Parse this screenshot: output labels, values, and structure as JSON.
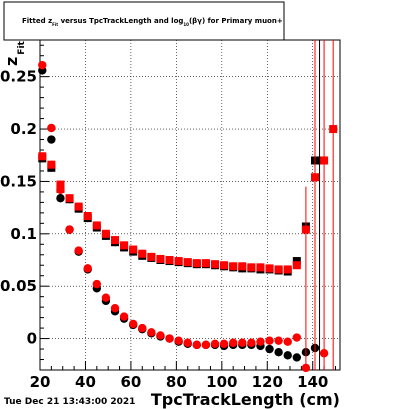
{
  "chart_data": {
    "type": "scatter",
    "title": {
      "prefix": "Fitted  z",
      "sub_fit": "Fit",
      "middle": "  versus  TpcTrackLength and log",
      "sub_10": "10",
      "suffix": "(βγ) for Primary muon+"
    },
    "xlabel": "TpcTrackLength (cm)",
    "ylabel_main": "z",
    "ylabel_sub": "Fit",
    "timestamp": "Tue Dec 21 13:43:00 2021",
    "xlim": [
      20,
      152
    ],
    "ylim": [
      -0.03,
      0.285
    ],
    "x_ticks": [
      20,
      40,
      60,
      80,
      100,
      120,
      140
    ],
    "y_ticks": [
      0,
      0.05,
      0.1,
      0.15,
      0.2,
      0.25
    ],
    "y_tick_labels": [
      "0",
      "0.05",
      "0.1",
      "0.15",
      "0.2",
      "0.25"
    ],
    "grid": true,
    "series": [
      {
        "color": "#000000",
        "marker": "circle",
        "points": [
          [
            21,
            0.256
          ],
          [
            25,
            0.19
          ],
          [
            29,
            0.134
          ],
          [
            33,
            0.104
          ],
          [
            37,
            0.083
          ],
          [
            41,
            0.066
          ],
          [
            45,
            0.048
          ],
          [
            49,
            0.036
          ],
          [
            53,
            0.026
          ],
          [
            57,
            0.019
          ],
          [
            61,
            0.013
          ],
          [
            65,
            0.009
          ],
          [
            69,
            0.005
          ],
          [
            73,
            0.002
          ],
          [
            77,
            0.0
          ],
          [
            81,
            -0.003
          ],
          [
            85,
            -0.005
          ],
          [
            89,
            -0.006
          ],
          [
            93,
            -0.006
          ],
          [
            97,
            -0.006
          ],
          [
            101,
            -0.007
          ],
          [
            105,
            -0.006
          ],
          [
            109,
            -0.006
          ],
          [
            113,
            -0.006
          ],
          [
            117,
            -0.007
          ],
          [
            121,
            -0.01
          ],
          [
            125,
            -0.013
          ],
          [
            129,
            -0.016
          ],
          [
            133,
            -0.018
          ],
          [
            137,
            -0.013
          ],
          [
            141,
            -0.009
          ]
        ]
      },
      {
        "color": "#000000",
        "marker": "square",
        "points": [
          [
            21,
            0.172
          ],
          [
            25,
            0.163
          ],
          [
            29,
            0.143
          ],
          [
            33,
            0.133
          ],
          [
            37,
            0.124
          ],
          [
            41,
            0.115
          ],
          [
            45,
            0.106
          ],
          [
            49,
            0.098
          ],
          [
            53,
            0.092
          ],
          [
            57,
            0.087
          ],
          [
            61,
            0.083
          ],
          [
            65,
            0.079
          ],
          [
            69,
            0.077
          ],
          [
            73,
            0.075
          ],
          [
            77,
            0.074
          ],
          [
            81,
            0.073
          ],
          [
            85,
            0.072
          ],
          [
            89,
            0.071
          ],
          [
            93,
            0.071
          ],
          [
            97,
            0.07
          ],
          [
            101,
            0.069
          ],
          [
            105,
            0.068
          ],
          [
            109,
            0.067
          ],
          [
            113,
            0.067
          ],
          [
            117,
            0.066
          ],
          [
            121,
            0.066
          ],
          [
            125,
            0.065
          ],
          [
            129,
            0.064
          ],
          [
            133,
            0.074
          ],
          [
            137,
            0.107
          ],
          [
            141,
            0.17
          ],
          [
            144,
            0.17
          ]
        ]
      },
      {
        "color": "#ff0000",
        "marker": "circle",
        "points": [
          [
            21,
            0.261
          ],
          [
            25,
            0.201
          ],
          [
            29,
            0.142
          ],
          [
            33,
            0.104
          ],
          [
            37,
            0.084
          ],
          [
            41,
            0.067
          ],
          [
            45,
            0.052
          ],
          [
            49,
            0.039
          ],
          [
            53,
            0.029
          ],
          [
            57,
            0.021
          ],
          [
            61,
            0.014
          ],
          [
            65,
            0.01
          ],
          [
            69,
            0.006
          ],
          [
            73,
            0.003
          ],
          [
            77,
            0.0
          ],
          [
            81,
            -0.002
          ],
          [
            85,
            -0.004
          ],
          [
            89,
            -0.006
          ],
          [
            93,
            -0.006
          ],
          [
            97,
            -0.005
          ],
          [
            101,
            -0.005
          ],
          [
            105,
            -0.004
          ],
          [
            109,
            -0.004
          ],
          [
            113,
            -0.004
          ],
          [
            117,
            -0.003
          ],
          [
            121,
            -0.002
          ],
          [
            125,
            -0.002
          ],
          [
            129,
            -0.003
          ],
          [
            133,
            0.001
          ],
          [
            137,
            -0.028
          ],
          [
            145,
            -0.014
          ]
        ]
      },
      {
        "color": "#ff0000",
        "marker": "square",
        "points": [
          [
            21,
            0.174
          ],
          [
            25,
            0.166
          ],
          [
            29,
            0.147
          ],
          [
            33,
            0.134
          ],
          [
            37,
            0.126
          ],
          [
            41,
            0.117
          ],
          [
            45,
            0.108
          ],
          [
            49,
            0.1
          ],
          [
            53,
            0.094
          ],
          [
            57,
            0.089
          ],
          [
            61,
            0.085
          ],
          [
            65,
            0.081
          ],
          [
            69,
            0.078
          ],
          [
            73,
            0.076
          ],
          [
            77,
            0.075
          ],
          [
            81,
            0.074
          ],
          [
            85,
            0.073
          ],
          [
            89,
            0.072
          ],
          [
            93,
            0.072
          ],
          [
            97,
            0.071
          ],
          [
            101,
            0.07
          ],
          [
            105,
            0.069
          ],
          [
            109,
            0.069
          ],
          [
            113,
            0.068
          ],
          [
            117,
            0.068
          ],
          [
            121,
            0.067
          ],
          [
            125,
            0.066
          ],
          [
            129,
            0.066
          ],
          [
            133,
            0.07
          ],
          [
            137,
            0.104
          ],
          [
            141,
            0.154
          ],
          [
            145,
            0.17
          ],
          [
            149,
            0.2
          ]
        ]
      }
    ]
  }
}
